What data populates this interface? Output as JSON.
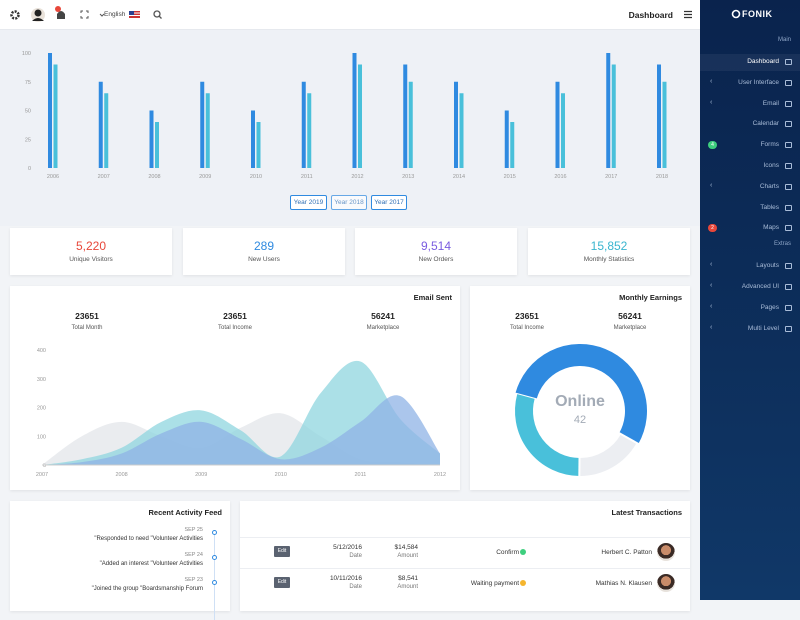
{
  "topbar": {
    "language": "English",
    "title": "Dashboard"
  },
  "sidebar": {
    "brand": "FONIK",
    "sections": [
      {
        "title": "Main",
        "items": [
          {
            "label": "Dashboard"
          },
          {
            "label": "User Interface",
            "submenu": true
          },
          {
            "label": "Email",
            "submenu": true
          },
          {
            "label": "Calendar"
          },
          {
            "label": "Forms",
            "badge": "4",
            "badge_color": "#3ecf7e"
          },
          {
            "label": "Icons"
          },
          {
            "label": "Charts",
            "submenu": true
          },
          {
            "label": "Tables"
          },
          {
            "label": "Maps",
            "badge": "2",
            "badge_color": "#e8473a"
          }
        ]
      },
      {
        "title": "Extras",
        "items": [
          {
            "label": "Layouts",
            "submenu": true
          },
          {
            "label": "Advanced UI",
            "submenu": true
          },
          {
            "label": "Pages",
            "submenu": true
          },
          {
            "label": "Multi Level",
            "submenu": true
          }
        ]
      }
    ]
  },
  "year_filters": [
    "Year 2019",
    "Year 2018",
    "Year 2017"
  ],
  "stats": [
    {
      "value": "5,220",
      "label": "Unique Visitors",
      "color": "#e8473a"
    },
    {
      "value": "289",
      "label": "New Users",
      "color": "#2f8ae0"
    },
    {
      "value": "9,514",
      "label": "New Orders",
      "color": "#7a5ce0"
    },
    {
      "value": "15,852",
      "label": "Monthly Statistics",
      "color": "#39b5cf"
    }
  ],
  "email_card": {
    "title": "Email Sent",
    "stats": [
      {
        "value": "23651",
        "label": "Total Month"
      },
      {
        "value": "23651",
        "label": "Total Income"
      },
      {
        "value": "56241",
        "label": "Marketplace"
      }
    ]
  },
  "earnings_card": {
    "title": "Monthly Earnings",
    "stats": [
      {
        "value": "23651",
        "label": "Total Income"
      },
      {
        "value": "56241",
        "label": "Marketplace"
      }
    ]
  },
  "activity": {
    "title": "Recent Activity Feed",
    "items": [
      {
        "date": "SEP 25",
        "text": "\"Responded to need \"Volunteer Activities"
      },
      {
        "date": "SEP 24",
        "text": "\"Added an interest \"Volunteer Activities"
      },
      {
        "date": "SEP 23",
        "text": "\"Joined the group \"Boardsmanship Forum"
      }
    ]
  },
  "transactions": {
    "title": "Latest Transactions",
    "rows": [
      {
        "action": "Edit",
        "date": "5/12/2016",
        "date_label": "Date",
        "amount": "$14,584",
        "amount_label": "Amount",
        "status": "Confirm",
        "status_color": "#3ecf7e",
        "name": "Herbert C. Patton"
      },
      {
        "action": "Edit",
        "date": "10/11/2016",
        "date_label": "Date",
        "amount": "$8,541",
        "amount_label": "Amount",
        "status": "Waiting payment",
        "status_color": "#f5b52e",
        "name": "Mathias N. Klausen"
      }
    ]
  },
  "chart_data": [
    {
      "type": "bar",
      "categories": [
        "2006",
        "2007",
        "2008",
        "2009",
        "2010",
        "2011",
        "2012",
        "2013",
        "2014",
        "2015",
        "2016",
        "2017",
        "2018"
      ],
      "series": [
        {
          "color": "#2f8ae0",
          "values": [
            100,
            75,
            50,
            75,
            50,
            75,
            100,
            90,
            75,
            50,
            75,
            100,
            90
          ]
        },
        {
          "color": "#49c0da",
          "values": [
            90,
            65,
            40,
            65,
            40,
            65,
            90,
            75,
            65,
            40,
            65,
            90,
            75
          ]
        }
      ],
      "ylim": [
        0,
        100
      ],
      "yticks": [
        0,
        25,
        50,
        75,
        100
      ]
    },
    {
      "type": "area",
      "x": [
        2007,
        2007.5,
        2008,
        2008.5,
        2009,
        2009.5,
        2010,
        2010.5,
        2011,
        2011.5,
        2012
      ],
      "series": [
        {
          "color": "#e3e5ea",
          "values": [
            0,
            100,
            150,
            100,
            60,
            130,
            180,
            100,
            20,
            10,
            0
          ]
        },
        {
          "color": "#8fd6df",
          "values": [
            0,
            20,
            60,
            150,
            190,
            120,
            30,
            250,
            360,
            160,
            40
          ]
        },
        {
          "color": "#8fb3e6",
          "values": [
            0,
            10,
            40,
            110,
            150,
            90,
            20,
            60,
            150,
            240,
            40
          ]
        }
      ],
      "xlim": [
        2007,
        2012
      ],
      "ylim": [
        0,
        400
      ],
      "xticks": [
        2007,
        2008,
        2009,
        2010,
        2011,
        2012
      ],
      "yticks": [
        0,
        100,
        200,
        300,
        400
      ]
    },
    {
      "type": "donut",
      "values": [
        54,
        17,
        29
      ],
      "colors": [
        "#2f8ae0",
        "#eceef2",
        "#49c0da"
      ],
      "center_label": "Online",
      "center_value": 42
    }
  ]
}
